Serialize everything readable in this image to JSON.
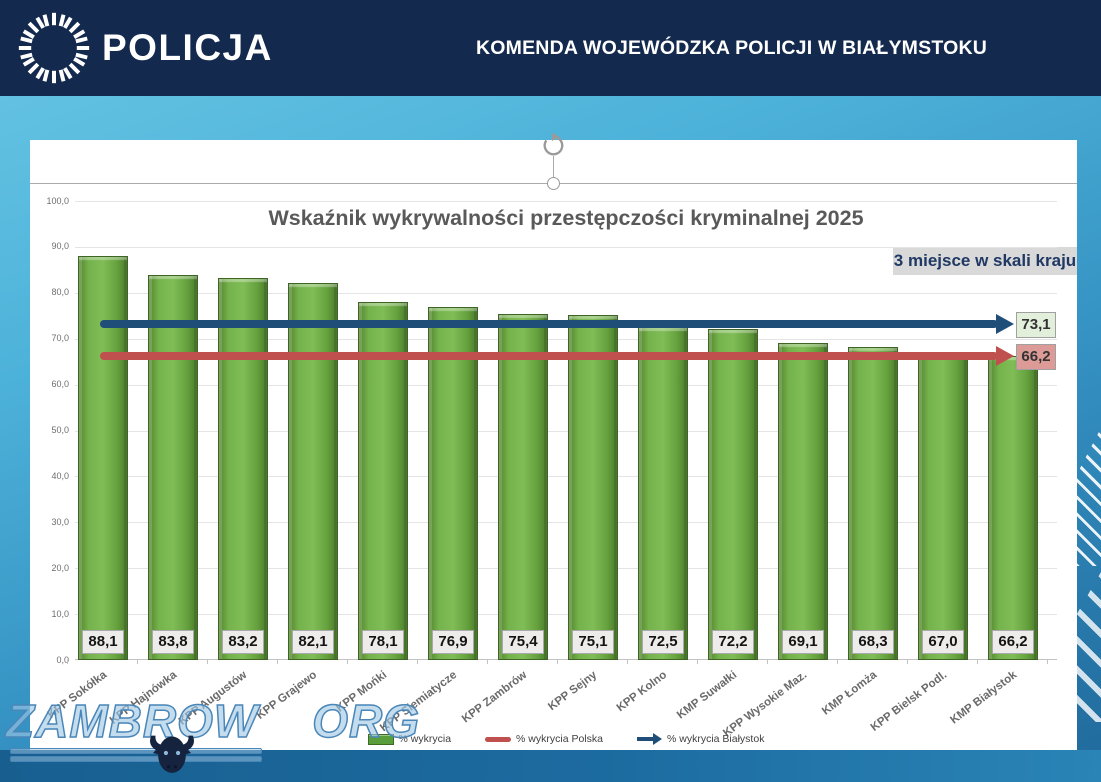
{
  "header": {
    "brand": "POLICJA",
    "title": "KOMENDA WOJEWÓDZKA POLICJI W BIAŁYMSTOKU"
  },
  "badge": {
    "label": "3 miejsce w skali kraju"
  },
  "chart_data": {
    "type": "bar",
    "title": "Wskaźnik wykrywalności przestępczości kryminalnej 2025",
    "categories": [
      "KPP Sokółka",
      "KPP Hajnówka",
      "KPP Augustów",
      "KPP Grajewo",
      "KPP Mońki",
      "KPP Siemiatycze",
      "KPP Zambrów",
      "KPP Sejny",
      "KPP Kolno",
      "KMP Suwałki",
      "KPP Wysokie Maz.",
      "KMP Łomża",
      "KPP Bielsk Podl.",
      "KMP Białystok"
    ],
    "values": [
      88.1,
      83.8,
      83.2,
      82.1,
      78.1,
      76.9,
      75.4,
      75.1,
      72.5,
      72.2,
      69.1,
      68.3,
      67.0,
      66.2
    ],
    "value_labels": [
      "88,1",
      "83,8",
      "83,2",
      "82,1",
      "78,1",
      "76,9",
      "75,4",
      "75,1",
      "72,5",
      "72,2",
      "69,1",
      "68,3",
      "67,0",
      "66,2"
    ],
    "ylim": [
      0,
      100
    ],
    "ytick_step": 10,
    "ytick_labels": [
      "0,0",
      "10,0",
      "20,0",
      "30,0",
      "40,0",
      "50,0",
      "60,0",
      "70,0",
      "80,0",
      "90,0",
      "100,0"
    ],
    "grid": true,
    "bar_color": "#68a744",
    "reference_lines": [
      {
        "name": "% wykrycia Białystok",
        "value": 73.1,
        "label": "73,1",
        "color": "#1f4e79",
        "label_bg": "#e2efda"
      },
      {
        "name": "% wykrycia Polska",
        "value": 66.2,
        "label": "66,2",
        "color": "#c0504d",
        "label_bg": "#dc9b96"
      }
    ],
    "legend": [
      {
        "label": "% wykrycia",
        "swatch": "bar",
        "color": "#5a9e3c"
      },
      {
        "label": "% wykrycia Polska",
        "swatch": "line",
        "color": "#c0504d"
      },
      {
        "label": "% wykrycia Białystok",
        "swatch": "arrow",
        "color": "#1f4e79"
      }
    ],
    "legend_position": "bottom"
  },
  "watermark": {
    "text_left": "ZAMBROW",
    "text_right": "ORG",
    "icon": "bison-icon"
  }
}
